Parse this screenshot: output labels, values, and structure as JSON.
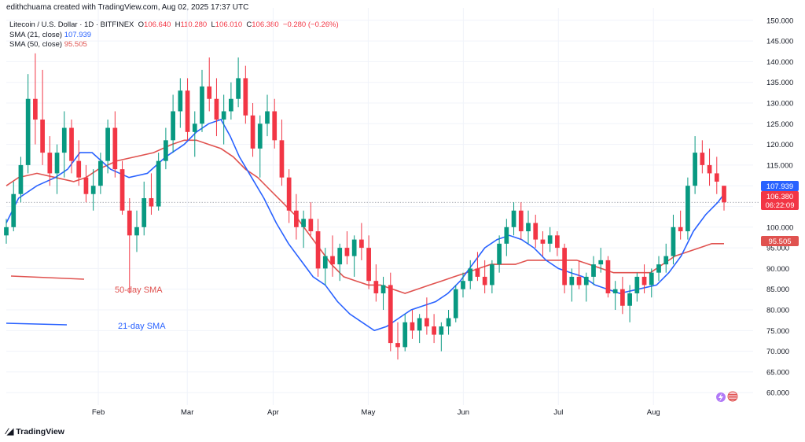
{
  "header": {
    "creator_line": "edithchuama created with TradingView.com, Aug 02, 2025 17:37 UTC"
  },
  "legend": {
    "symbol": "Litecoin / U.S. Dollar · 1D · BITFINEX",
    "open_label": "O",
    "open": "106.640",
    "high_label": "H",
    "high": "110.280",
    "low_label": "L",
    "low": "106.010",
    "close_label": "C",
    "close": "106.380",
    "change": "−0.280 (−0.26%)",
    "sma21_label": "SMA (21, close)",
    "sma21_value": "107.939",
    "sma50_label": "SMA (50, close)",
    "sma50_value": "95.505"
  },
  "annotations": {
    "sma50_text": "50-day SMA",
    "sma21_text": "21-day SMA"
  },
  "price_tags": {
    "sma21": "107.939",
    "last": "106.380",
    "countdown": "06:22:09",
    "sma50": "95.505"
  },
  "footer": {
    "brand": "TradingView"
  },
  "colors": {
    "up": "#089981",
    "down": "#f23645",
    "sma21": "#2962ff",
    "sma50": "#e0524f",
    "grid": "#f0f3fa"
  },
  "chart_data": {
    "type": "candlestick",
    "y_axis_ticks": [
      "150.000",
      "145.000",
      "140.000",
      "135.000",
      "130.000",
      "125.000",
      "120.000",
      "115.000",
      "110.000",
      "105.000",
      "100.000",
      "95.000",
      "90.000",
      "85.000",
      "80.000",
      "75.000",
      "70.000",
      "65.000",
      "60.000"
    ],
    "ylim": [
      57,
      153
    ],
    "x_axis_ticks": [
      "Feb",
      "Mar",
      "Apr",
      "May",
      "Jun",
      "Jul",
      "Aug"
    ],
    "sma21": [
      [
        0,
        101
      ],
      [
        4,
        107
      ],
      [
        10,
        110
      ],
      [
        16,
        112
      ],
      [
        20,
        114
      ],
      [
        24,
        118
      ],
      [
        28,
        118
      ],
      [
        34,
        114
      ],
      [
        40,
        112
      ],
      [
        46,
        113
      ],
      [
        52,
        117
      ],
      [
        58,
        120
      ],
      [
        62,
        123
      ],
      [
        66,
        125
      ],
      [
        70,
        126
      ],
      [
        73,
        122
      ],
      [
        76,
        117
      ],
      [
        80,
        112
      ],
      [
        84,
        107
      ],
      [
        88,
        101
      ],
      [
        92,
        96
      ],
      [
        96,
        92
      ],
      [
        100,
        88
      ],
      [
        104,
        86
      ],
      [
        108,
        82
      ],
      [
        112,
        79
      ],
      [
        116,
        77
      ],
      [
        120,
        75
      ],
      [
        124,
        76
      ],
      [
        128,
        78
      ],
      [
        132,
        80
      ],
      [
        136,
        81
      ],
      [
        140,
        82
      ],
      [
        144,
        84
      ],
      [
        148,
        87
      ],
      [
        152,
        91
      ],
      [
        156,
        95
      ],
      [
        160,
        97
      ],
      [
        164,
        98
      ],
      [
        168,
        97
      ],
      [
        172,
        95
      ],
      [
        176,
        92
      ],
      [
        180,
        90
      ],
      [
        184,
        89
      ],
      [
        188,
        88
      ],
      [
        192,
        86
      ],
      [
        196,
        85
      ],
      [
        200,
        84
      ],
      [
        206,
        85
      ],
      [
        212,
        86
      ],
      [
        216,
        89
      ],
      [
        220,
        93
      ],
      [
        224,
        99
      ],
      [
        228,
        103
      ],
      [
        232,
        106
      ],
      [
        234,
        108
      ]
    ],
    "sma50": [
      [
        0,
        110
      ],
      [
        4,
        112
      ],
      [
        10,
        113
      ],
      [
        16,
        112
      ],
      [
        22,
        111
      ],
      [
        26,
        112
      ],
      [
        30,
        114
      ],
      [
        36,
        116
      ],
      [
        42,
        117
      ],
      [
        48,
        118
      ],
      [
        54,
        120
      ],
      [
        58,
        121
      ],
      [
        62,
        121
      ],
      [
        66,
        120
      ],
      [
        70,
        119
      ],
      [
        74,
        117
      ],
      [
        78,
        114
      ],
      [
        82,
        112
      ],
      [
        86,
        109
      ],
      [
        90,
        106
      ],
      [
        94,
        103
      ],
      [
        98,
        99
      ],
      [
        102,
        95
      ],
      [
        106,
        91
      ],
      [
        110,
        88
      ],
      [
        114,
        87
      ],
      [
        118,
        86
      ],
      [
        122,
        86
      ],
      [
        126,
        85
      ],
      [
        130,
        84
      ],
      [
        134,
        85
      ],
      [
        138,
        86
      ],
      [
        142,
        87
      ],
      [
        146,
        88
      ],
      [
        150,
        89
      ],
      [
        154,
        90
      ],
      [
        158,
        91
      ],
      [
        162,
        91
      ],
      [
        166,
        91
      ],
      [
        170,
        92
      ],
      [
        174,
        92
      ],
      [
        178,
        92
      ],
      [
        182,
        92
      ],
      [
        186,
        92
      ],
      [
        190,
        91
      ],
      [
        194,
        90
      ],
      [
        198,
        89
      ],
      [
        204,
        89
      ],
      [
        210,
        89
      ],
      [
        214,
        91
      ],
      [
        218,
        93
      ],
      [
        222,
        94
      ],
      [
        226,
        95
      ],
      [
        230,
        96
      ],
      [
        234,
        96
      ]
    ],
    "candles": [
      [
        98,
        102,
        96,
        100
      ],
      [
        100,
        111,
        99,
        108
      ],
      [
        108,
        117,
        106,
        115
      ],
      [
        115,
        137,
        113,
        131
      ],
      [
        131,
        142,
        120,
        126
      ],
      [
        126,
        138,
        115,
        118
      ],
      [
        118,
        122,
        110,
        113
      ],
      [
        113,
        120,
        108,
        118
      ],
      [
        118,
        128,
        112,
        124
      ],
      [
        124,
        126,
        113,
        116
      ],
      [
        116,
        121,
        110,
        112
      ],
      [
        112,
        115,
        106,
        108
      ],
      [
        108,
        114,
        104,
        110
      ],
      [
        110,
        118,
        108,
        116
      ],
      [
        116,
        126,
        113,
        124
      ],
      [
        124,
        128,
        112,
        114
      ],
      [
        114,
        116,
        103,
        104
      ],
      [
        104,
        107,
        84,
        98
      ],
      [
        98,
        104,
        94,
        100
      ],
      [
        100,
        111,
        98,
        107
      ],
      [
        107,
        113,
        103,
        105
      ],
      [
        105,
        118,
        104,
        116
      ],
      [
        116,
        124,
        114,
        121
      ],
      [
        121,
        132,
        118,
        128
      ],
      [
        128,
        136,
        124,
        133
      ],
      [
        133,
        136,
        121,
        123
      ],
      [
        123,
        128,
        117,
        125
      ],
      [
        125,
        138,
        123,
        134
      ],
      [
        134,
        141,
        128,
        131
      ],
      [
        131,
        136,
        122,
        126
      ],
      [
        126,
        132,
        120,
        128
      ],
      [
        128,
        135,
        126,
        131
      ],
      [
        131,
        141,
        129,
        136
      ],
      [
        136,
        139,
        125,
        127
      ],
      [
        127,
        130,
        117,
        119
      ],
      [
        119,
        127,
        112,
        125
      ],
      [
        125,
        132,
        122,
        128
      ],
      [
        128,
        131,
        119,
        121
      ],
      [
        121,
        126,
        110,
        112
      ],
      [
        112,
        114,
        101,
        104
      ],
      [
        104,
        108,
        97,
        100
      ],
      [
        100,
        104,
        95,
        102
      ],
      [
        102,
        106,
        98,
        99
      ],
      [
        99,
        102,
        88,
        90
      ],
      [
        90,
        95,
        86,
        93
      ],
      [
        93,
        98,
        88,
        91
      ],
      [
        91,
        96,
        87,
        95
      ],
      [
        95,
        99,
        91,
        93
      ],
      [
        93,
        98,
        88,
        97
      ],
      [
        97,
        101,
        92,
        95
      ],
      [
        95,
        98,
        85,
        87
      ],
      [
        87,
        91,
        82,
        84
      ],
      [
        84,
        88,
        80,
        86
      ],
      [
        86,
        89,
        70,
        72
      ],
      [
        72,
        77,
        68,
        71
      ],
      [
        71,
        79,
        70,
        77
      ],
      [
        77,
        80,
        73,
        75
      ],
      [
        75,
        79,
        72,
        78
      ],
      [
        78,
        83,
        74,
        76
      ],
      [
        76,
        79,
        72,
        74
      ],
      [
        74,
        77,
        70,
        76
      ],
      [
        76,
        80,
        74,
        78
      ],
      [
        78,
        86,
        77,
        85
      ],
      [
        85,
        89,
        83,
        87
      ],
      [
        87,
        92,
        85,
        90
      ],
      [
        90,
        94,
        87,
        88
      ],
      [
        88,
        92,
        84,
        86
      ],
      [
        86,
        92,
        84,
        91
      ],
      [
        91,
        98,
        89,
        96
      ],
      [
        96,
        102,
        93,
        100
      ],
      [
        100,
        106,
        98,
        104
      ],
      [
        104,
        106,
        97,
        99
      ],
      [
        99,
        104,
        96,
        101
      ],
      [
        101,
        103,
        95,
        97
      ],
      [
        97,
        99,
        93,
        96
      ],
      [
        96,
        100,
        94,
        98
      ],
      [
        98,
        99,
        93,
        95
      ],
      [
        95,
        96,
        84,
        86
      ],
      [
        86,
        90,
        82,
        88
      ],
      [
        88,
        92,
        85,
        86
      ],
      [
        86,
        89,
        82,
        88
      ],
      [
        88,
        93,
        86,
        91
      ],
      [
        91,
        95,
        89,
        92
      ],
      [
        92,
        93,
        83,
        84
      ],
      [
        84,
        87,
        80,
        85
      ],
      [
        85,
        88,
        79,
        81
      ],
      [
        81,
        86,
        77,
        84
      ],
      [
        84,
        89,
        82,
        88
      ],
      [
        88,
        91,
        84,
        86
      ],
      [
        86,
        90,
        83,
        89
      ],
      [
        89,
        93,
        87,
        91
      ],
      [
        91,
        96,
        89,
        93
      ],
      [
        93,
        103,
        91,
        100
      ],
      [
        100,
        104,
        97,
        99
      ],
      [
        99,
        112,
        97,
        110
      ],
      [
        110,
        122,
        108,
        118
      ],
      [
        118,
        121,
        113,
        115
      ],
      [
        115,
        119,
        110,
        113
      ],
      [
        113,
        117,
        108,
        111
      ],
      [
        110,
        110,
        104,
        106
      ]
    ]
  }
}
